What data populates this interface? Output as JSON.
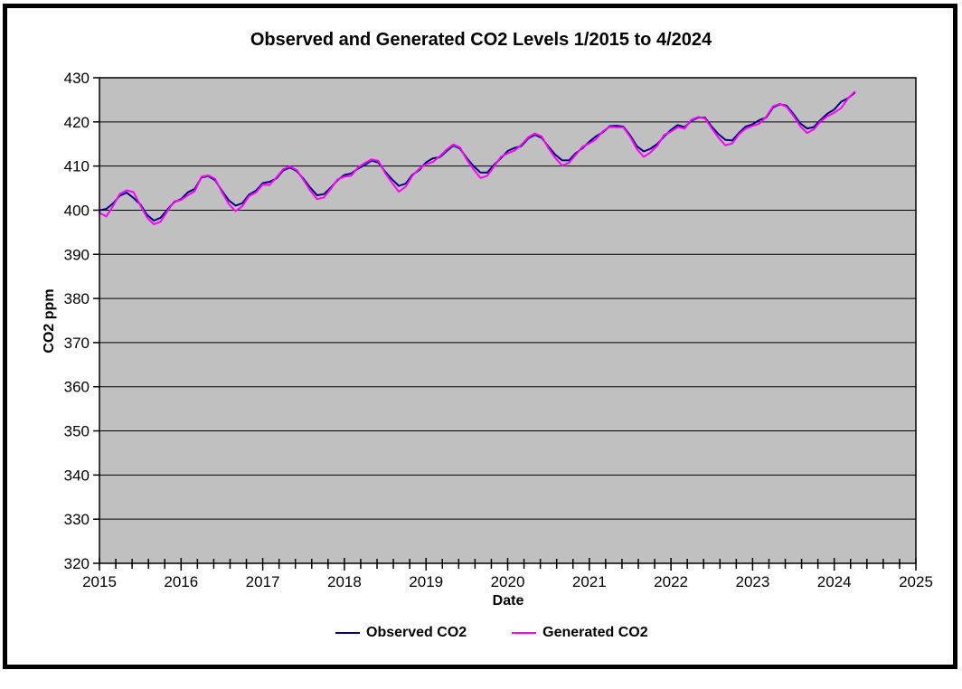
{
  "window": {
    "background": "#FFFFFF",
    "frame_border_color": "#000000"
  },
  "chart": {
    "title": "Observed and Generated CO2 Levels 1/2015 to 4/2024",
    "x_axis_title": "Date",
    "y_axis_title": "CO2 ppm"
  },
  "chart_data": {
    "type": "line",
    "title": "Observed and Generated CO2 Levels 1/2015 to 4/2024",
    "xlabel": "Date",
    "ylabel": "CO2 ppm",
    "xlim": [
      2015,
      2025
    ],
    "ylim": [
      320,
      430
    ],
    "x_major_ticks": [
      2015,
      2016,
      2017,
      2018,
      2019,
      2020,
      2021,
      2022,
      2023,
      2024,
      2025
    ],
    "x_minor_tick_interval": 0.2,
    "y_ticks": [
      320,
      330,
      340,
      350,
      360,
      370,
      380,
      390,
      400,
      410,
      420,
      430
    ],
    "grid": "horizontal-black-lines",
    "legend_position": "bottom",
    "plot_bg": "#C0C0C0",
    "gridline_color": "#000000",
    "axis_color": "#000000",
    "x_start_label": "1/2015",
    "x_end_label": "4/2024",
    "x_step_months": 1,
    "series": [
      {
        "name": "Observed CO2",
        "color": "#000080",
        "values": [
          399.98,
          400.28,
          401.54,
          403.28,
          403.96,
          402.8,
          401.3,
          398.93,
          397.63,
          398.29,
          400.16,
          401.85,
          402.52,
          404.04,
          404.83,
          407.42,
          407.7,
          406.81,
          404.39,
          402.25,
          401.03,
          401.57,
          403.53,
          404.42,
          406.13,
          406.42,
          407.18,
          409.0,
          409.65,
          408.84,
          407.07,
          405.07,
          403.38,
          403.64,
          405.12,
          406.81,
          407.96,
          408.32,
          409.41,
          410.24,
          411.24,
          410.79,
          408.71,
          406.99,
          405.51,
          406.0,
          408.02,
          409.07,
          410.83,
          411.75,
          411.97,
          413.32,
          414.66,
          413.92,
          411.77,
          409.95,
          408.54,
          408.52,
          410.27,
          411.76,
          413.4,
          414.11,
          414.51,
          416.21,
          417.07,
          416.39,
          414.38,
          412.55,
          411.29,
          411.28,
          412.89,
          414.02,
          415.52,
          416.75,
          417.64,
          419.05,
          419.13,
          418.94,
          416.96,
          414.47,
          413.3,
          413.93,
          415.01,
          416.71,
          418.19,
          419.28,
          418.81,
          420.23,
          420.99,
          420.99,
          418.9,
          417.19,
          415.95,
          415.78,
          417.51,
          418.95,
          419.48,
          420.41,
          421.0,
          423.28,
          424.0,
          423.68,
          421.83,
          419.68,
          418.51,
          418.82,
          420.46,
          421.86,
          422.8,
          424.55,
          425.38,
          426.57
        ]
      },
      {
        "name": "Generated CO2",
        "color": "#FF00FF",
        "values": [
          399.4,
          398.6,
          401.0,
          403.7,
          404.5,
          404.1,
          401.1,
          398.3,
          396.8,
          397.4,
          399.8,
          402.0,
          402.3,
          403.4,
          404.3,
          407.6,
          407.9,
          407.1,
          404.1,
          401.4,
          399.8,
          400.9,
          403.2,
          404.0,
          405.8,
          405.7,
          407.4,
          409.3,
          409.9,
          409.1,
          406.8,
          404.4,
          402.5,
          402.9,
          404.8,
          407.0,
          407.6,
          407.8,
          409.7,
          410.7,
          411.5,
          411.2,
          408.4,
          406.2,
          404.2,
          405.3,
          407.8,
          409.4,
          410.4,
          410.9,
          412.2,
          413.7,
          414.9,
          414.2,
          411.4,
          409.2,
          407.3,
          407.8,
          409.9,
          412.1,
          412.9,
          413.5,
          414.8,
          416.5,
          417.4,
          416.7,
          414.0,
          411.8,
          410.1,
          410.7,
          412.5,
          414.4,
          415.1,
          416.1,
          417.9,
          418.9,
          418.8,
          418.8,
          416.6,
          413.8,
          412.1,
          413.1,
          414.6,
          417.1,
          417.8,
          418.8,
          418.5,
          420.5,
          421.1,
          420.8,
          418.5,
          416.4,
          414.7,
          415.1,
          417.2,
          418.5,
          419.1,
          419.6,
          421.2,
          423.5,
          424.1,
          423.4,
          421.4,
          419.0,
          417.5,
          418.3,
          420.1,
          421.3,
          422.1,
          423.1,
          425.3,
          426.8
        ]
      }
    ]
  }
}
